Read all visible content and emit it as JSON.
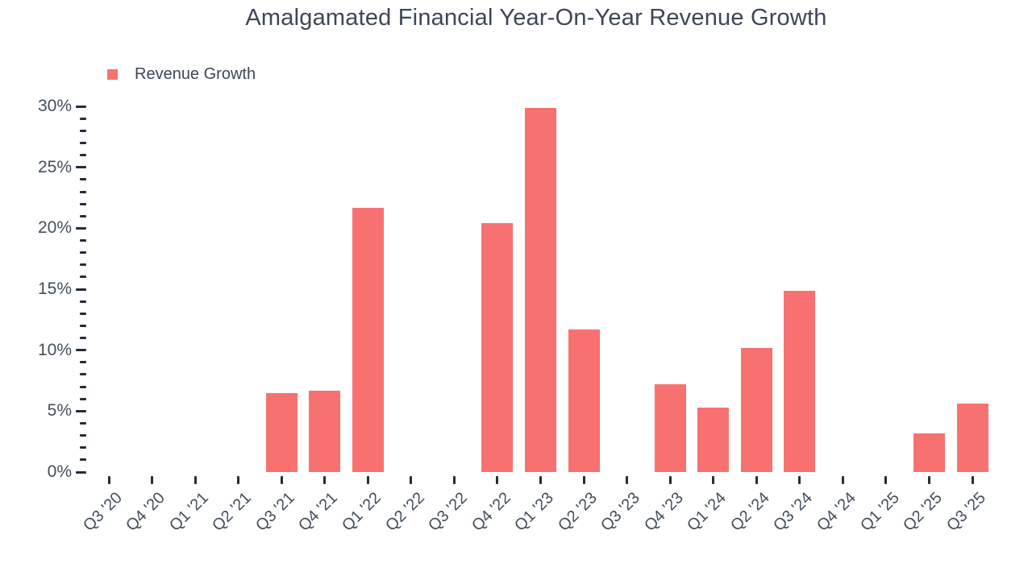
{
  "title": "Amalgamated Financial Year-On-Year Revenue Growth",
  "legend": {
    "label": "Revenue Growth",
    "marker_color": "#f87171"
  },
  "colors": {
    "bar": "#f87171",
    "tick": "#262c38",
    "text": "#434e5d",
    "title_text": "#3d4756",
    "background": "#ffffff"
  },
  "chart_data": {
    "type": "bar",
    "title": "Amalgamated Financial Year-On-Year Revenue Growth",
    "series_name": "Revenue Growth",
    "categories": [
      "Q3 '20",
      "Q4 '20",
      "Q1 '21",
      "Q2 '21",
      "Q3 '21",
      "Q4 '21",
      "Q1 '22",
      "Q2 '22",
      "Q3 '22",
      "Q4 '22",
      "Q1 '23",
      "Q2 '23",
      "Q3 '23",
      "Q4 '23",
      "Q1 '24",
      "Q2 '24",
      "Q3 '24",
      "Q4 '24",
      "Q1 '25",
      "Q2 '25",
      "Q3 '25"
    ],
    "values": [
      0,
      0,
      0,
      0,
      6.5,
      6.7,
      21.7,
      0,
      0,
      20.4,
      29.9,
      11.7,
      0,
      7.2,
      5.3,
      10.2,
      14.9,
      0,
      0,
      3.2,
      5.6
    ],
    "value_unit": "%",
    "xlabel": "",
    "ylabel": "",
    "ylim": [
      0,
      30
    ],
    "y_tick_values": [
      0,
      5,
      10,
      15,
      20,
      25,
      30
    ],
    "y_tick_labels": [
      "0%",
      "5%",
      "10%",
      "15%",
      "20%",
      "25%",
      "30%"
    ],
    "y_minor_step": 1,
    "grid": false,
    "legend_position": "top-left"
  }
}
